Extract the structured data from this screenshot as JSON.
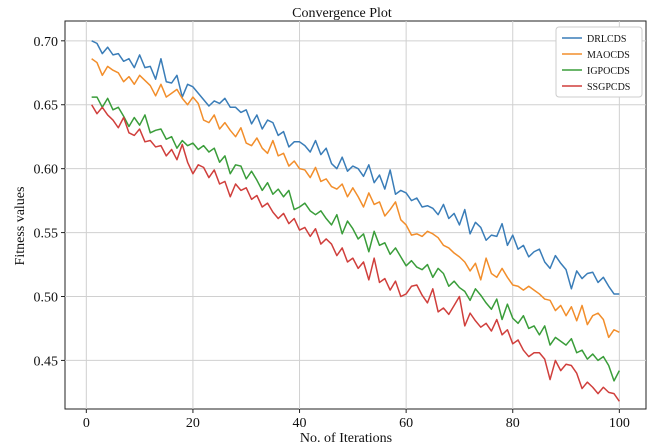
{
  "chart_data": {
    "type": "line",
    "title": "Convergence Plot",
    "xlabel": "No. of Iterations",
    "ylabel": "Fitness values",
    "xlim": [
      -4,
      105
    ],
    "ylim": [
      0.412,
      0.7155
    ],
    "xticks": [
      0,
      20,
      40,
      60,
      80,
      100
    ],
    "yticks": [
      0.45,
      0.5,
      0.55,
      0.6,
      0.65,
      0.7
    ],
    "xtick_labels": [
      "0",
      "20",
      "40",
      "60",
      "80",
      "100"
    ],
    "ytick_labels": [
      "0.45",
      "0.50",
      "0.55",
      "0.60",
      "0.65",
      "0.70"
    ],
    "grid": true,
    "legend_position": "top-right",
    "x": [
      1,
      2,
      3,
      4,
      5,
      6,
      7,
      8,
      9,
      10,
      11,
      12,
      13,
      14,
      15,
      16,
      17,
      18,
      19,
      20,
      21,
      22,
      23,
      24,
      25,
      26,
      27,
      28,
      29,
      30,
      31,
      32,
      33,
      34,
      35,
      36,
      37,
      38,
      39,
      40,
      41,
      42,
      43,
      44,
      45,
      46,
      47,
      48,
      49,
      50,
      51,
      52,
      53,
      54,
      55,
      56,
      57,
      58,
      59,
      60,
      61,
      62,
      63,
      64,
      65,
      66,
      67,
      68,
      69,
      70,
      71,
      72,
      73,
      74,
      75,
      76,
      77,
      78,
      79,
      80,
      81,
      82,
      83,
      84,
      85,
      86,
      87,
      88,
      89,
      90,
      91,
      92,
      93,
      94,
      95,
      96,
      97,
      98,
      99,
      100
    ],
    "series": [
      {
        "name": "DRLCDS",
        "color": "#3a7db8",
        "values": [
          0.7,
          0.698,
          0.69,
          0.695,
          0.689,
          0.69,
          0.684,
          0.686,
          0.679,
          0.689,
          0.679,
          0.68,
          0.67,
          0.686,
          0.668,
          0.667,
          0.673,
          0.656,
          0.666,
          0.664,
          0.659,
          0.654,
          0.649,
          0.653,
          0.651,
          0.655,
          0.648,
          0.648,
          0.644,
          0.646,
          0.635,
          0.642,
          0.631,
          0.638,
          0.636,
          0.626,
          0.629,
          0.617,
          0.621,
          0.621,
          0.618,
          0.613,
          0.622,
          0.611,
          0.616,
          0.604,
          0.6,
          0.609,
          0.598,
          0.602,
          0.6,
          0.594,
          0.603,
          0.589,
          0.595,
          0.584,
          0.599,
          0.58,
          0.583,
          0.581,
          0.575,
          0.577,
          0.57,
          0.571,
          0.569,
          0.564,
          0.572,
          0.561,
          0.565,
          0.556,
          0.568,
          0.549,
          0.558,
          0.554,
          0.544,
          0.548,
          0.547,
          0.557,
          0.54,
          0.548,
          0.537,
          0.54,
          0.531,
          0.535,
          0.537,
          0.527,
          0.522,
          0.532,
          0.526,
          0.521,
          0.506,
          0.52,
          0.514,
          0.518,
          0.519,
          0.511,
          0.515,
          0.508,
          0.502,
          0.502
        ]
      },
      {
        "name": "MAOCDS",
        "color": "#f28e2b",
        "values": [
          0.686,
          0.683,
          0.673,
          0.68,
          0.677,
          0.675,
          0.668,
          0.672,
          0.666,
          0.673,
          0.669,
          0.665,
          0.657,
          0.666,
          0.656,
          0.659,
          0.662,
          0.655,
          0.65,
          0.656,
          0.651,
          0.638,
          0.636,
          0.642,
          0.631,
          0.636,
          0.63,
          0.625,
          0.632,
          0.62,
          0.618,
          0.624,
          0.616,
          0.612,
          0.622,
          0.61,
          0.612,
          0.602,
          0.606,
          0.6,
          0.599,
          0.593,
          0.601,
          0.59,
          0.592,
          0.586,
          0.584,
          0.588,
          0.578,
          0.585,
          0.578,
          0.57,
          0.581,
          0.572,
          0.574,
          0.563,
          0.568,
          0.574,
          0.56,
          0.556,
          0.548,
          0.549,
          0.547,
          0.551,
          0.549,
          0.546,
          0.54,
          0.538,
          0.534,
          0.531,
          0.527,
          0.52,
          0.526,
          0.513,
          0.53,
          0.518,
          0.515,
          0.522,
          0.515,
          0.509,
          0.508,
          0.505,
          0.508,
          0.505,
          0.502,
          0.498,
          0.497,
          0.489,
          0.493,
          0.485,
          0.492,
          0.481,
          0.493,
          0.478,
          0.485,
          0.487,
          0.482,
          0.468,
          0.474,
          0.472
        ]
      },
      {
        "name": "IGPOCDS",
        "color": "#3a9d3a",
        "values": [
          0.656,
          0.656,
          0.648,
          0.655,
          0.646,
          0.648,
          0.641,
          0.633,
          0.64,
          0.634,
          0.642,
          0.628,
          0.63,
          0.631,
          0.623,
          0.625,
          0.616,
          0.622,
          0.618,
          0.62,
          0.615,
          0.618,
          0.613,
          0.616,
          0.605,
          0.61,
          0.596,
          0.603,
          0.602,
          0.592,
          0.598,
          0.591,
          0.583,
          0.589,
          0.58,
          0.584,
          0.578,
          0.583,
          0.568,
          0.57,
          0.573,
          0.567,
          0.564,
          0.567,
          0.561,
          0.556,
          0.564,
          0.549,
          0.559,
          0.553,
          0.545,
          0.549,
          0.535,
          0.551,
          0.54,
          0.542,
          0.533,
          0.538,
          0.531,
          0.524,
          0.528,
          0.523,
          0.521,
          0.525,
          0.515,
          0.522,
          0.518,
          0.508,
          0.512,
          0.507,
          0.504,
          0.497,
          0.506,
          0.501,
          0.495,
          0.49,
          0.498,
          0.482,
          0.494,
          0.483,
          0.479,
          0.485,
          0.475,
          0.477,
          0.47,
          0.477,
          0.462,
          0.468,
          0.465,
          0.462,
          0.467,
          0.456,
          0.458,
          0.451,
          0.455,
          0.45,
          0.453,
          0.446,
          0.434,
          0.442
        ]
      },
      {
        "name": "SSGPCDS",
        "color": "#d03f3c",
        "values": [
          0.65,
          0.643,
          0.648,
          0.642,
          0.638,
          0.632,
          0.64,
          0.628,
          0.626,
          0.631,
          0.621,
          0.622,
          0.617,
          0.618,
          0.61,
          0.615,
          0.607,
          0.619,
          0.605,
          0.596,
          0.603,
          0.601,
          0.593,
          0.599,
          0.588,
          0.59,
          0.578,
          0.588,
          0.583,
          0.585,
          0.576,
          0.579,
          0.57,
          0.573,
          0.566,
          0.561,
          0.565,
          0.557,
          0.561,
          0.552,
          0.554,
          0.547,
          0.553,
          0.541,
          0.545,
          0.541,
          0.532,
          0.538,
          0.527,
          0.53,
          0.522,
          0.527,
          0.513,
          0.53,
          0.511,
          0.514,
          0.505,
          0.512,
          0.5,
          0.502,
          0.508,
          0.509,
          0.501,
          0.495,
          0.506,
          0.488,
          0.491,
          0.486,
          0.493,
          0.5,
          0.477,
          0.487,
          0.481,
          0.476,
          0.479,
          0.473,
          0.482,
          0.47,
          0.474,
          0.463,
          0.466,
          0.458,
          0.453,
          0.456,
          0.456,
          0.451,
          0.435,
          0.45,
          0.442,
          0.447,
          0.446,
          0.44,
          0.428,
          0.433,
          0.429,
          0.424,
          0.429,
          0.425,
          0.424,
          0.418
        ]
      }
    ]
  }
}
